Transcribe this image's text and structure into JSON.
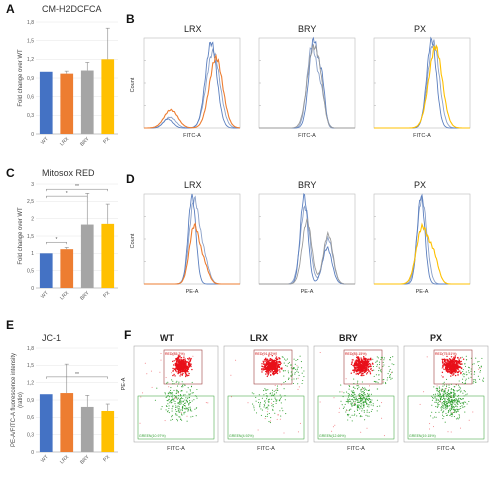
{
  "panels": {
    "A": {
      "letter": "A",
      "title": "CM-H2DCFCA"
    },
    "B": {
      "letter": "B"
    },
    "C": {
      "letter": "C",
      "title": "Mitosox RED"
    },
    "D": {
      "letter": "D"
    },
    "E": {
      "letter": "E",
      "title": "JC-1"
    },
    "F": {
      "letter": "F"
    }
  },
  "flow_titles": [
    "LRX",
    "BRY",
    "PX"
  ],
  "flow_axes": {
    "count": "Count",
    "fitc": "FITC-A",
    "pe": "PE-A"
  },
  "facs": {
    "titles": [
      "WT",
      "LRX",
      "BRY",
      "PX"
    ],
    "xlabel": "FITC-A",
    "ylabel": "PE-A",
    "red_gates": [
      "RED(85.2%)",
      "RED(91.82%)",
      "RED(85.15%)",
      "RED(75.51%)"
    ],
    "green_gates": [
      "GREEN(10.97%)",
      "GREEN(4.92%)",
      "GREEN(12.69%)",
      "GREEN(19.15%)"
    ]
  },
  "colors": {
    "WT": "#4472c4",
    "LRX": "#ed7d31",
    "BRY": "#a5a5a5",
    "PX": "#ffc000",
    "red": "#e8101a",
    "green": "#2e9e2e"
  },
  "chart_data": [
    {
      "type": "bar",
      "title": "CM-H2DCFCA",
      "ylabel": "Fold change over WT",
      "categories": [
        "WT",
        "LRX",
        "BRY",
        "PX"
      ],
      "values": [
        1.0,
        0.97,
        1.02,
        1.2
      ],
      "errors": [
        0.0,
        0.04,
        0.13,
        0.5
      ],
      "ylim": [
        0,
        1.8
      ],
      "yticks": [
        "0",
        "0,3",
        "0,6",
        "0,9",
        "1,2",
        "1,5",
        "1,8"
      ]
    },
    {
      "type": "bar",
      "title": "Mitosox RED",
      "ylabel": "Fold change over WT",
      "categories": [
        "WT",
        "LRX",
        "BRY",
        "PX"
      ],
      "values": [
        1.0,
        1.12,
        1.83,
        1.85
      ],
      "errors": [
        0.0,
        0.05,
        0.9,
        0.57
      ],
      "ylim": [
        0,
        3
      ],
      "yticks": [
        "0",
        "0,5",
        "1",
        "1,5",
        "2",
        "2,5",
        "3"
      ],
      "significance": [
        "*",
        "*",
        "**"
      ]
    },
    {
      "type": "bar",
      "title": "JC-1",
      "ylabel": "PE-A/FITC-A fluorescence intensity (ratio)",
      "categories": [
        "WT",
        "LRX",
        "BRY",
        "PX"
      ],
      "values": [
        1.0,
        1.02,
        0.78,
        0.71
      ],
      "errors": [
        0.0,
        0.5,
        0.2,
        0.12
      ],
      "ylim": [
        0,
        1.8
      ],
      "yticks": [
        "0",
        "0,3",
        "0,6",
        "0,9",
        "1,2",
        "1,5",
        "1,8"
      ],
      "significance": [
        "**"
      ]
    }
  ]
}
